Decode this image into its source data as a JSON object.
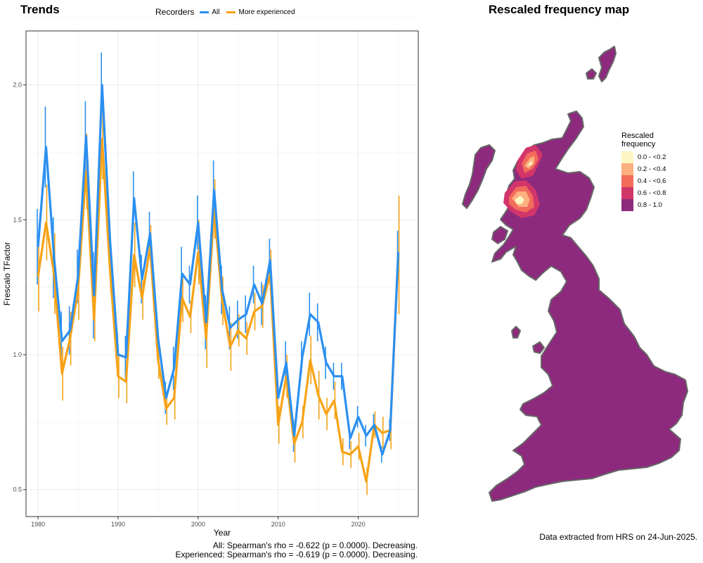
{
  "trends_panel": {
    "title": "Trends",
    "legend_heading": "Recorders",
    "stats": {
      "all": "All: Spearman's rho = -0.622 (p = 0.0000). Decreasing.",
      "experienced": "Experienced: Spearman's rho = -0.619 (p = 0.0000). Decreasing."
    }
  },
  "map_panel": {
    "title": "Rescaled frequency map",
    "legend_title": "Rescaled frequency",
    "legend_items": [
      {
        "label": "0.0 - <0.2",
        "color": "#fdf6c3"
      },
      {
        "label": "0.2 - <0.4",
        "color": "#fdb07f"
      },
      {
        "label": "0.4 - <0.6",
        "color": "#f26b5b"
      },
      {
        "label": "0.6 - <0.8",
        "color": "#d2356a"
      },
      {
        "label": "0.8 - 1.0",
        "color": "#8d2a7e"
      }
    ],
    "source_note": "Data extracted from HRS on 24-Jun-2025."
  },
  "chart_data": {
    "type": "line",
    "xlabel": "Year",
    "ylabel": "Frescalo TFactor",
    "xlim": [
      1978.5,
      2027.5
    ],
    "ylim": [
      0.4,
      2.2
    ],
    "xticks": [
      1980,
      1990,
      2000,
      2010,
      2020
    ],
    "yticks": [
      0.5,
      1.0,
      1.5,
      2.0
    ],
    "ytick_labels": [
      "0.5",
      "1.0",
      "1.5",
      "2.0"
    ],
    "grid": true,
    "legend_position": "top",
    "x": [
      1980,
      1981,
      1982,
      1983,
      1984,
      1985,
      1986,
      1987,
      1988,
      1989,
      1990,
      1991,
      1992,
      1993,
      1994,
      1995,
      1996,
      1997,
      1998,
      1999,
      2000,
      2001,
      2002,
      2003,
      2004,
      2005,
      2006,
      2007,
      2008,
      2009,
      2010,
      2011,
      2012,
      2013,
      2014,
      2015,
      2016,
      2017,
      2018,
      2019,
      2020,
      2021,
      2022,
      2023,
      2024,
      2025
    ],
    "series": [
      {
        "name": "All",
        "color": "#2b8ff0",
        "values": [
          1.4,
          1.77,
          1.36,
          1.05,
          1.09,
          1.29,
          1.81,
          1.22,
          2.0,
          1.42,
          1.0,
          0.99,
          1.58,
          1.28,
          1.45,
          1.06,
          0.84,
          0.95,
          1.3,
          1.26,
          1.49,
          1.12,
          1.61,
          1.24,
          1.1,
          1.13,
          1.15,
          1.26,
          1.19,
          1.35,
          0.84,
          0.97,
          0.7,
          0.99,
          1.15,
          1.12,
          0.97,
          0.92,
          0.92,
          0.69,
          0.77,
          0.7,
          0.74,
          0.63,
          0.72,
          1.38
        ],
        "err": [
          0.14,
          0.15,
          0.15,
          0.11,
          0.09,
          0.1,
          0.13,
          0.16,
          0.12,
          0.09,
          0.08,
          0.08,
          0.1,
          0.09,
          0.08,
          0.06,
          0.06,
          0.08,
          0.1,
          0.07,
          0.1,
          0.1,
          0.11,
          0.09,
          0.08,
          0.07,
          0.07,
          0.07,
          0.08,
          0.08,
          0.06,
          0.08,
          0.06,
          0.06,
          0.08,
          0.07,
          0.06,
          0.05,
          0.05,
          0.04,
          0.04,
          0.04,
          0.04,
          0.03,
          0.04,
          0.08
        ]
      },
      {
        "name": "More experienced",
        "color": "#f7a216",
        "values": [
          1.29,
          1.49,
          1.3,
          0.93,
          1.06,
          1.24,
          1.68,
          1.13,
          1.8,
          1.31,
          0.92,
          0.9,
          1.37,
          1.21,
          1.4,
          0.98,
          0.8,
          0.84,
          1.21,
          1.14,
          1.38,
          1.06,
          1.54,
          1.2,
          1.03,
          1.09,
          1.06,
          1.16,
          1.18,
          1.3,
          0.74,
          0.92,
          0.67,
          0.75,
          0.98,
          0.85,
          0.78,
          0.83,
          0.64,
          0.63,
          0.66,
          0.53,
          0.74,
          0.71,
          0.72,
          1.37
        ],
        "err": [
          0.13,
          0.14,
          0.15,
          0.1,
          0.1,
          0.11,
          0.14,
          0.08,
          0.15,
          0.08,
          0.08,
          0.08,
          0.12,
          0.08,
          0.08,
          0.07,
          0.06,
          0.08,
          0.09,
          0.06,
          0.12,
          0.11,
          0.11,
          0.09,
          0.09,
          0.06,
          0.06,
          0.07,
          0.08,
          0.09,
          0.07,
          0.08,
          0.07,
          0.06,
          0.09,
          0.09,
          0.06,
          0.07,
          0.05,
          0.05,
          0.05,
          0.05,
          0.05,
          0.06,
          0.07,
          0.22
        ]
      }
    ]
  }
}
